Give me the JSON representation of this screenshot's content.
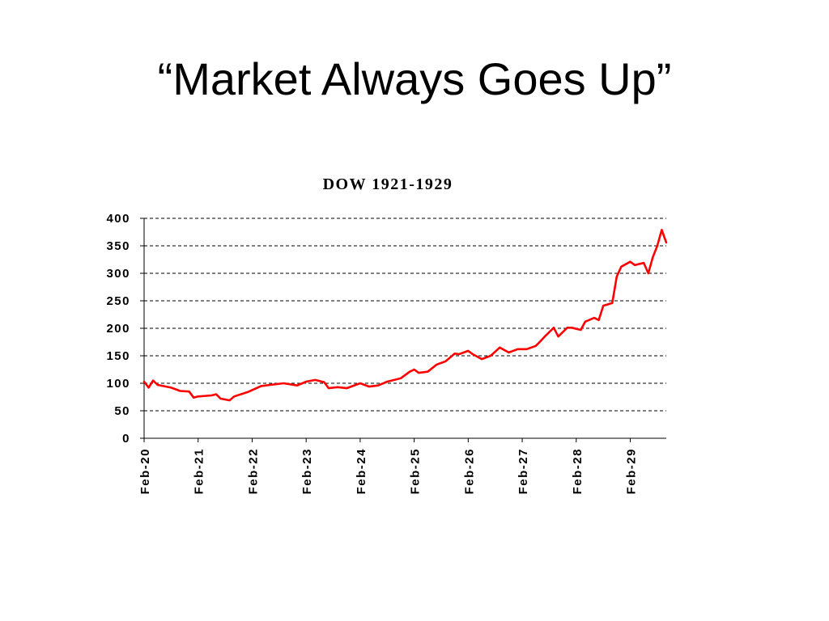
{
  "slide": {
    "title": "“Market Always Goes Up”"
  },
  "chart_data": {
    "type": "line",
    "title": "DOW 1921-1929",
    "xlabel": "",
    "ylabel": "",
    "ylim": [
      0,
      400
    ],
    "xlim": [
      "1920-02",
      "1929-10"
    ],
    "grid": true,
    "y_ticks": [
      0,
      50,
      100,
      150,
      200,
      250,
      300,
      350,
      400
    ],
    "x_ticks": [
      {
        "label": "Feb-20",
        "x": "1920-02"
      },
      {
        "label": "Feb-21",
        "x": "1921-02"
      },
      {
        "label": "Feb-22",
        "x": "1922-02"
      },
      {
        "label": "Feb-23",
        "x": "1923-02"
      },
      {
        "label": "Feb-24",
        "x": "1924-02"
      },
      {
        "label": "Feb-25",
        "x": "1925-02"
      },
      {
        "label": "Feb-26",
        "x": "1926-02"
      },
      {
        "label": "Feb-27",
        "x": "1927-02"
      },
      {
        "label": "Feb-28",
        "x": "1928-02"
      },
      {
        "label": "Feb-29",
        "x": "1929-02"
      }
    ],
    "series": [
      {
        "color": "#ff0000",
        "points": [
          [
            "1920-02",
            103
          ],
          [
            "1920-03",
            92
          ],
          [
            "1920-04",
            105
          ],
          [
            "1920-05",
            97
          ],
          [
            "1920-08",
            92
          ],
          [
            "1920-10",
            86
          ],
          [
            "1920-12",
            85
          ],
          [
            "1921-01",
            74
          ],
          [
            "1921-02",
            76
          ],
          [
            "1921-05",
            78
          ],
          [
            "1921-06",
            80
          ],
          [
            "1921-07",
            72
          ],
          [
            "1921-09",
            69
          ],
          [
            "1921-10",
            76
          ],
          [
            "1922-01",
            84
          ],
          [
            "1922-04",
            95
          ],
          [
            "1922-06",
            97
          ],
          [
            "1922-09",
            100
          ],
          [
            "1922-12",
            96
          ],
          [
            "1923-02",
            103
          ],
          [
            "1923-04",
            106
          ],
          [
            "1923-06",
            102
          ],
          [
            "1923-07",
            91
          ],
          [
            "1923-09",
            93
          ],
          [
            "1923-11",
            91
          ],
          [
            "1924-02",
            100
          ],
          [
            "1924-04",
            94
          ],
          [
            "1924-06",
            96
          ],
          [
            "1924-08",
            103
          ],
          [
            "1924-11",
            109
          ],
          [
            "1925-01",
            121
          ],
          [
            "1925-02",
            125
          ],
          [
            "1925-03",
            119
          ],
          [
            "1925-05",
            121
          ],
          [
            "1925-07",
            134
          ],
          [
            "1925-09",
            140
          ],
          [
            "1925-11",
            154
          ],
          [
            "1925-12",
            153
          ],
          [
            "1926-02",
            159
          ],
          [
            "1926-03",
            153
          ],
          [
            "1926-05",
            144
          ],
          [
            "1926-07",
            150
          ],
          [
            "1926-09",
            165
          ],
          [
            "1926-11",
            156
          ],
          [
            "1927-01",
            162
          ],
          [
            "1927-03",
            162
          ],
          [
            "1927-05",
            168
          ],
          [
            "1927-06",
            176
          ],
          [
            "1927-07",
            185
          ],
          [
            "1927-09",
            201
          ],
          [
            "1927-10",
            185
          ],
          [
            "1927-12",
            201
          ],
          [
            "1928-01",
            201
          ],
          [
            "1928-03",
            197
          ],
          [
            "1928-04",
            212
          ],
          [
            "1928-06",
            219
          ],
          [
            "1928-07",
            215
          ],
          [
            "1928-08",
            241
          ],
          [
            "1928-10",
            246
          ],
          [
            "1928-11",
            294
          ],
          [
            "1928-12",
            312
          ],
          [
            "1929-02",
            321
          ],
          [
            "1929-03",
            315
          ],
          [
            "1929-05",
            319
          ],
          [
            "1929-06",
            300
          ],
          [
            "1929-07",
            329
          ],
          [
            "1929-08",
            350
          ],
          [
            "1929-09",
            379
          ],
          [
            "1929-10",
            356
          ]
        ]
      }
    ]
  }
}
